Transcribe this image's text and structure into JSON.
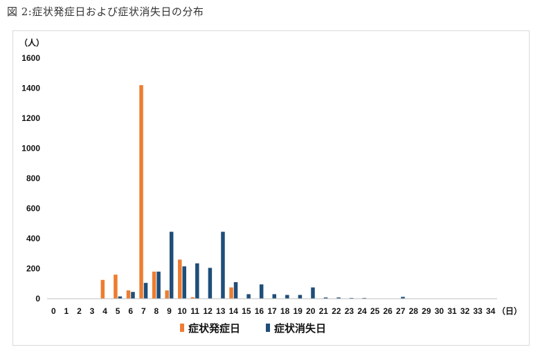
{
  "figure": {
    "title": "図 2:症状発症日および症状消失日の分布"
  },
  "chart_data": {
    "type": "bar",
    "title": "図 2:症状発症日および症状消失日の分布",
    "ylabel": "（人）",
    "xlabel": "（日）",
    "ylim": [
      0,
      1600
    ],
    "yticks": [
      0,
      200,
      400,
      600,
      800,
      1000,
      1200,
      1400,
      1600
    ],
    "categories": [
      "0",
      "1",
      "2",
      "3",
      "4",
      "5",
      "6",
      "7",
      "8",
      "9",
      "10",
      "11",
      "12",
      "13",
      "14",
      "15",
      "16",
      "17",
      "18",
      "19",
      "20",
      "21",
      "22",
      "23",
      "24",
      "25",
      "26",
      "27",
      "28",
      "29",
      "30",
      "31",
      "32",
      "33",
      "34"
    ],
    "series": [
      {
        "name": "症状発症日",
        "color": "#ed7d31",
        "values": [
          0,
          0,
          0,
          0,
          125,
          160,
          55,
          1420,
          180,
          55,
          260,
          10,
          0,
          0,
          75,
          0,
          0,
          0,
          0,
          0,
          0,
          0,
          0,
          0,
          0,
          0,
          0,
          0,
          0,
          0,
          0,
          0,
          0,
          0,
          0
        ]
      },
      {
        "name": "症状消失日",
        "color": "#1f4e79",
        "values": [
          0,
          0,
          0,
          0,
          0,
          15,
          45,
          105,
          180,
          445,
          215,
          235,
          205,
          445,
          110,
          30,
          95,
          30,
          25,
          25,
          75,
          8,
          8,
          5,
          5,
          0,
          0,
          12,
          0,
          0,
          0,
          0,
          0,
          0,
          0
        ]
      }
    ],
    "legend_position": "bottom-center",
    "grid": false
  }
}
